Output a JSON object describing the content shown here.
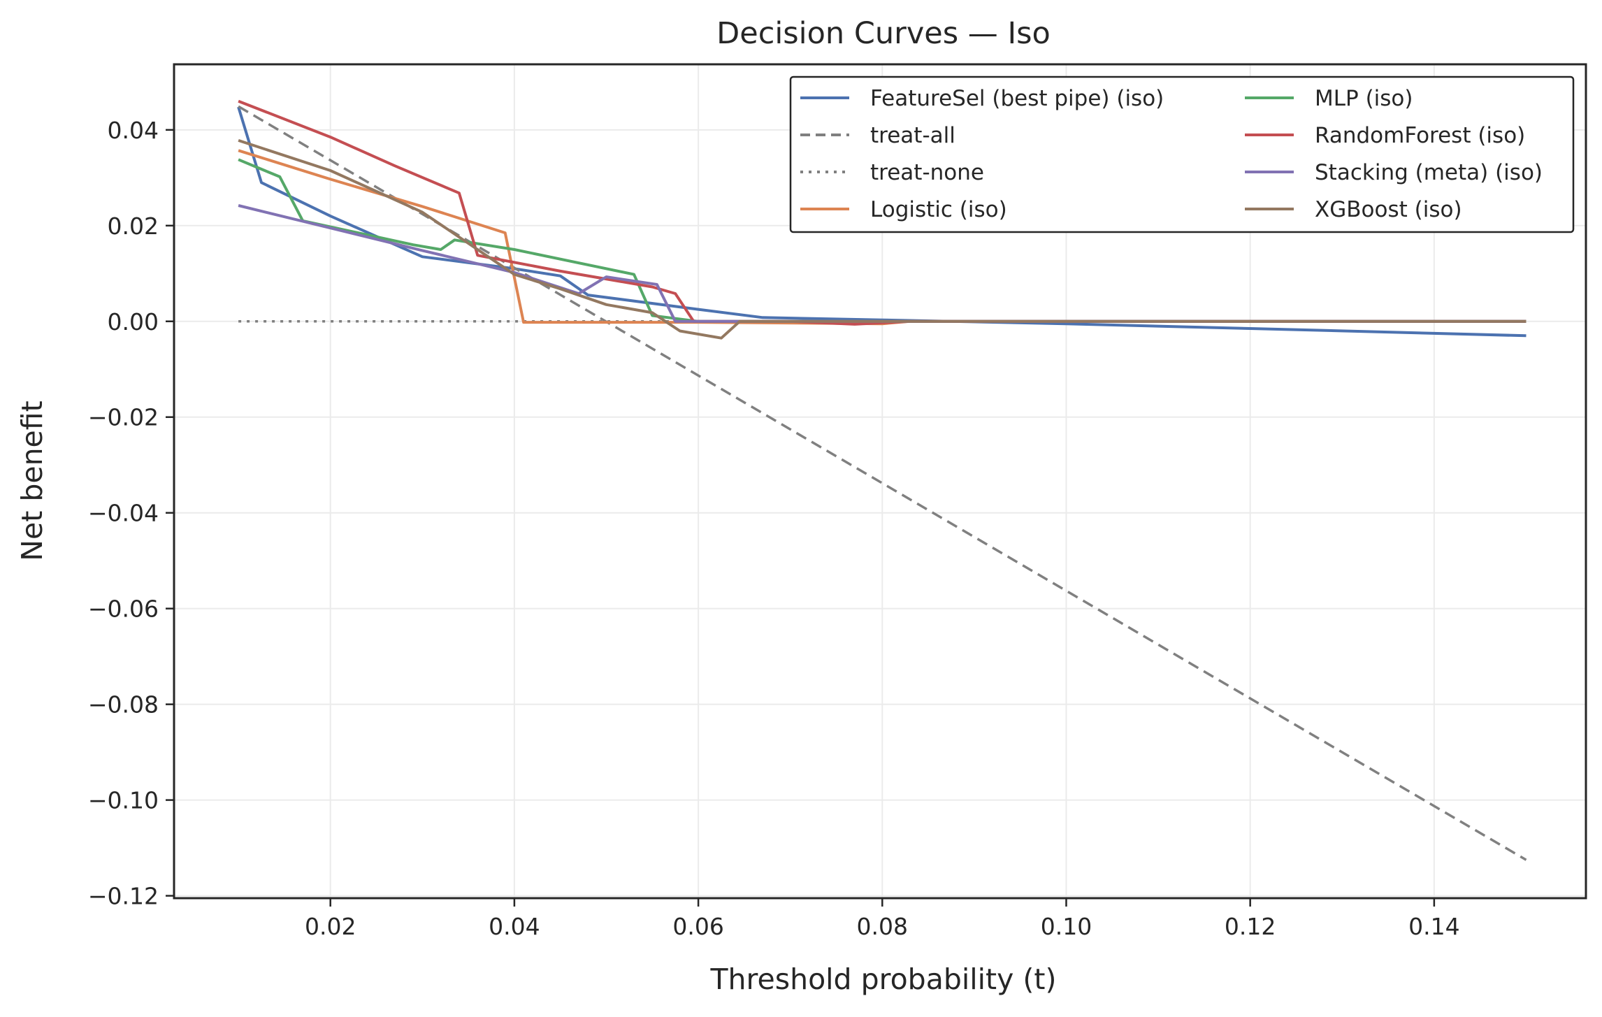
{
  "chart_data": {
    "type": "line",
    "title": "Decision Curves — Iso",
    "xlabel": "Threshold probability (t)",
    "ylabel": "Net benefit",
    "xlim": [
      0.003,
      0.1565
    ],
    "ylim": [
      -0.1205,
      0.0537
    ],
    "xticks": [
      0.02,
      0.04,
      0.06,
      0.08,
      0.1,
      0.12,
      0.14
    ],
    "xtick_labels": [
      "0.02",
      "0.04",
      "0.06",
      "0.08",
      "0.10",
      "0.12",
      "0.14"
    ],
    "yticks": [
      0.04,
      0.02,
      0.0,
      -0.02,
      -0.04,
      -0.06,
      -0.08,
      -0.1,
      -0.12
    ],
    "ytick_labels": [
      "0.04",
      "0.02",
      "0.00",
      "−0.02",
      "−0.04",
      "−0.06",
      "−0.08",
      "−0.10",
      "−0.12"
    ],
    "grid": true,
    "legend": {
      "position": "top-right",
      "columns": 2
    },
    "series": [
      {
        "name": "FeatureSel (best pipe) (iso)",
        "color": "#4C72B0",
        "dash": "solid",
        "x": [
          0.01,
          0.0125,
          0.02,
          0.03,
          0.04,
          0.045,
          0.048,
          0.06,
          0.067,
          0.08,
          0.1,
          0.12,
          0.15
        ],
        "y": [
          0.0448,
          0.029,
          0.022,
          0.0135,
          0.011,
          0.0095,
          0.0055,
          0.0025,
          0.0008,
          0.0003,
          -0.0005,
          -0.0015,
          -0.003
        ]
      },
      {
        "name": "treat-all",
        "color": "#808080",
        "dash": "dashed",
        "x": [
          0.01,
          0.15
        ],
        "y": [
          0.0449,
          -0.1125
        ]
      },
      {
        "name": "treat-none",
        "color": "#808080",
        "dash": "dotted",
        "x": [
          0.01,
          0.15
        ],
        "y": [
          0.0,
          0.0
        ]
      },
      {
        "name": "Logistic (iso)",
        "color": "#DD8452",
        "dash": "solid",
        "x": [
          0.01,
          0.02,
          0.03,
          0.039,
          0.041,
          0.06,
          0.08,
          0.083,
          0.15
        ],
        "y": [
          0.0357,
          0.0297,
          0.024,
          0.0185,
          -0.0002,
          -0.0002,
          -0.0005,
          0.0,
          0.0
        ]
      },
      {
        "name": "MLP (iso)",
        "color": "#55A868",
        "dash": "solid",
        "x": [
          0.01,
          0.0125,
          0.0145,
          0.017,
          0.029,
          0.032,
          0.0335,
          0.04,
          0.053,
          0.055,
          0.06,
          0.08,
          0.15
        ],
        "y": [
          0.0338,
          0.0318,
          0.0302,
          0.021,
          0.016,
          0.015,
          0.017,
          0.015,
          0.0098,
          0.0012,
          0.0,
          0.0,
          0.0
        ]
      },
      {
        "name": "RandomForest (iso)",
        "color": "#C44E52",
        "dash": "solid",
        "x": [
          0.01,
          0.02,
          0.027,
          0.034,
          0.036,
          0.045,
          0.055,
          0.0575,
          0.0595,
          0.07,
          0.077,
          0.083,
          0.15
        ],
        "y": [
          0.046,
          0.0385,
          0.0325,
          0.0268,
          0.0138,
          0.0105,
          0.0072,
          0.0058,
          0.0,
          0.0,
          -0.0006,
          0.0,
          0.0
        ]
      },
      {
        "name": "Stacking (meta) (iso)",
        "color": "#8172B3",
        "dash": "solid",
        "x": [
          0.01,
          0.02,
          0.03,
          0.04,
          0.047,
          0.05,
          0.0555,
          0.0575,
          0.06,
          0.15
        ],
        "y": [
          0.0242,
          0.0195,
          0.0148,
          0.0102,
          0.0058,
          0.0093,
          0.0077,
          0.0,
          0.0,
          0.0
        ]
      },
      {
        "name": "XGBoost (iso)",
        "color": "#937860",
        "dash": "solid",
        "x": [
          0.01,
          0.02,
          0.03,
          0.04,
          0.045,
          0.05,
          0.055,
          0.058,
          0.0625,
          0.0645,
          0.08,
          0.15
        ],
        "y": [
          0.0378,
          0.0315,
          0.0228,
          0.0098,
          0.0068,
          0.0035,
          0.0018,
          -0.002,
          -0.0035,
          0.0,
          0.0,
          0.0
        ]
      }
    ]
  }
}
